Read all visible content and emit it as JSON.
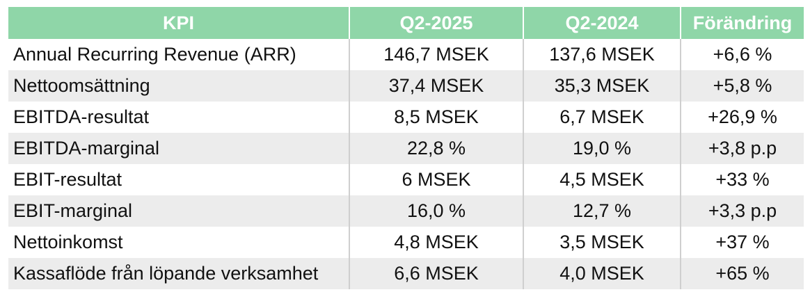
{
  "header": {
    "kpi": "KPI",
    "current": "Q2-2025",
    "previous": "Q2-2024",
    "change": "Förändring"
  },
  "rows": [
    {
      "kpi": "Annual Recurring Revenue (ARR)",
      "current": "146,7 MSEK",
      "previous": "137,6 MSEK",
      "change": "+6,6 %"
    },
    {
      "kpi": "Nettoomsättning",
      "current": "37,4 MSEK",
      "previous": "35,3 MSEK",
      "change": "+5,8 %"
    },
    {
      "kpi": "EBITDA-resultat",
      "current": "8,5 MSEK",
      "previous": "6,7 MSEK",
      "change": "+26,9 %"
    },
    {
      "kpi": "EBITDA-marginal",
      "current": "22,8 %",
      "previous": "19,0 %",
      "change": "+3,8 p.p"
    },
    {
      "kpi": "EBIT-resultat",
      "current": "6 MSEK",
      "previous": "4,5 MSEK",
      "change": "+33 %"
    },
    {
      "kpi": "EBIT-marginal",
      "current": "16,0 %",
      "previous": "12,7 %",
      "change": "+3,3 p.p"
    },
    {
      "kpi": "Nettoinkomst",
      "current": "4,8 MSEK",
      "previous": "3,5 MSEK",
      "change": "+37 %"
    },
    {
      "kpi": "Kassaflöde från löpande verksamhet",
      "current": "6,6 MSEK",
      "previous": "4,0 MSEK",
      "change": "+65 %"
    }
  ],
  "colors": {
    "header_bg": "#8fd6a8",
    "header_text": "#ffffff",
    "stripe_bg": "#ececec"
  }
}
